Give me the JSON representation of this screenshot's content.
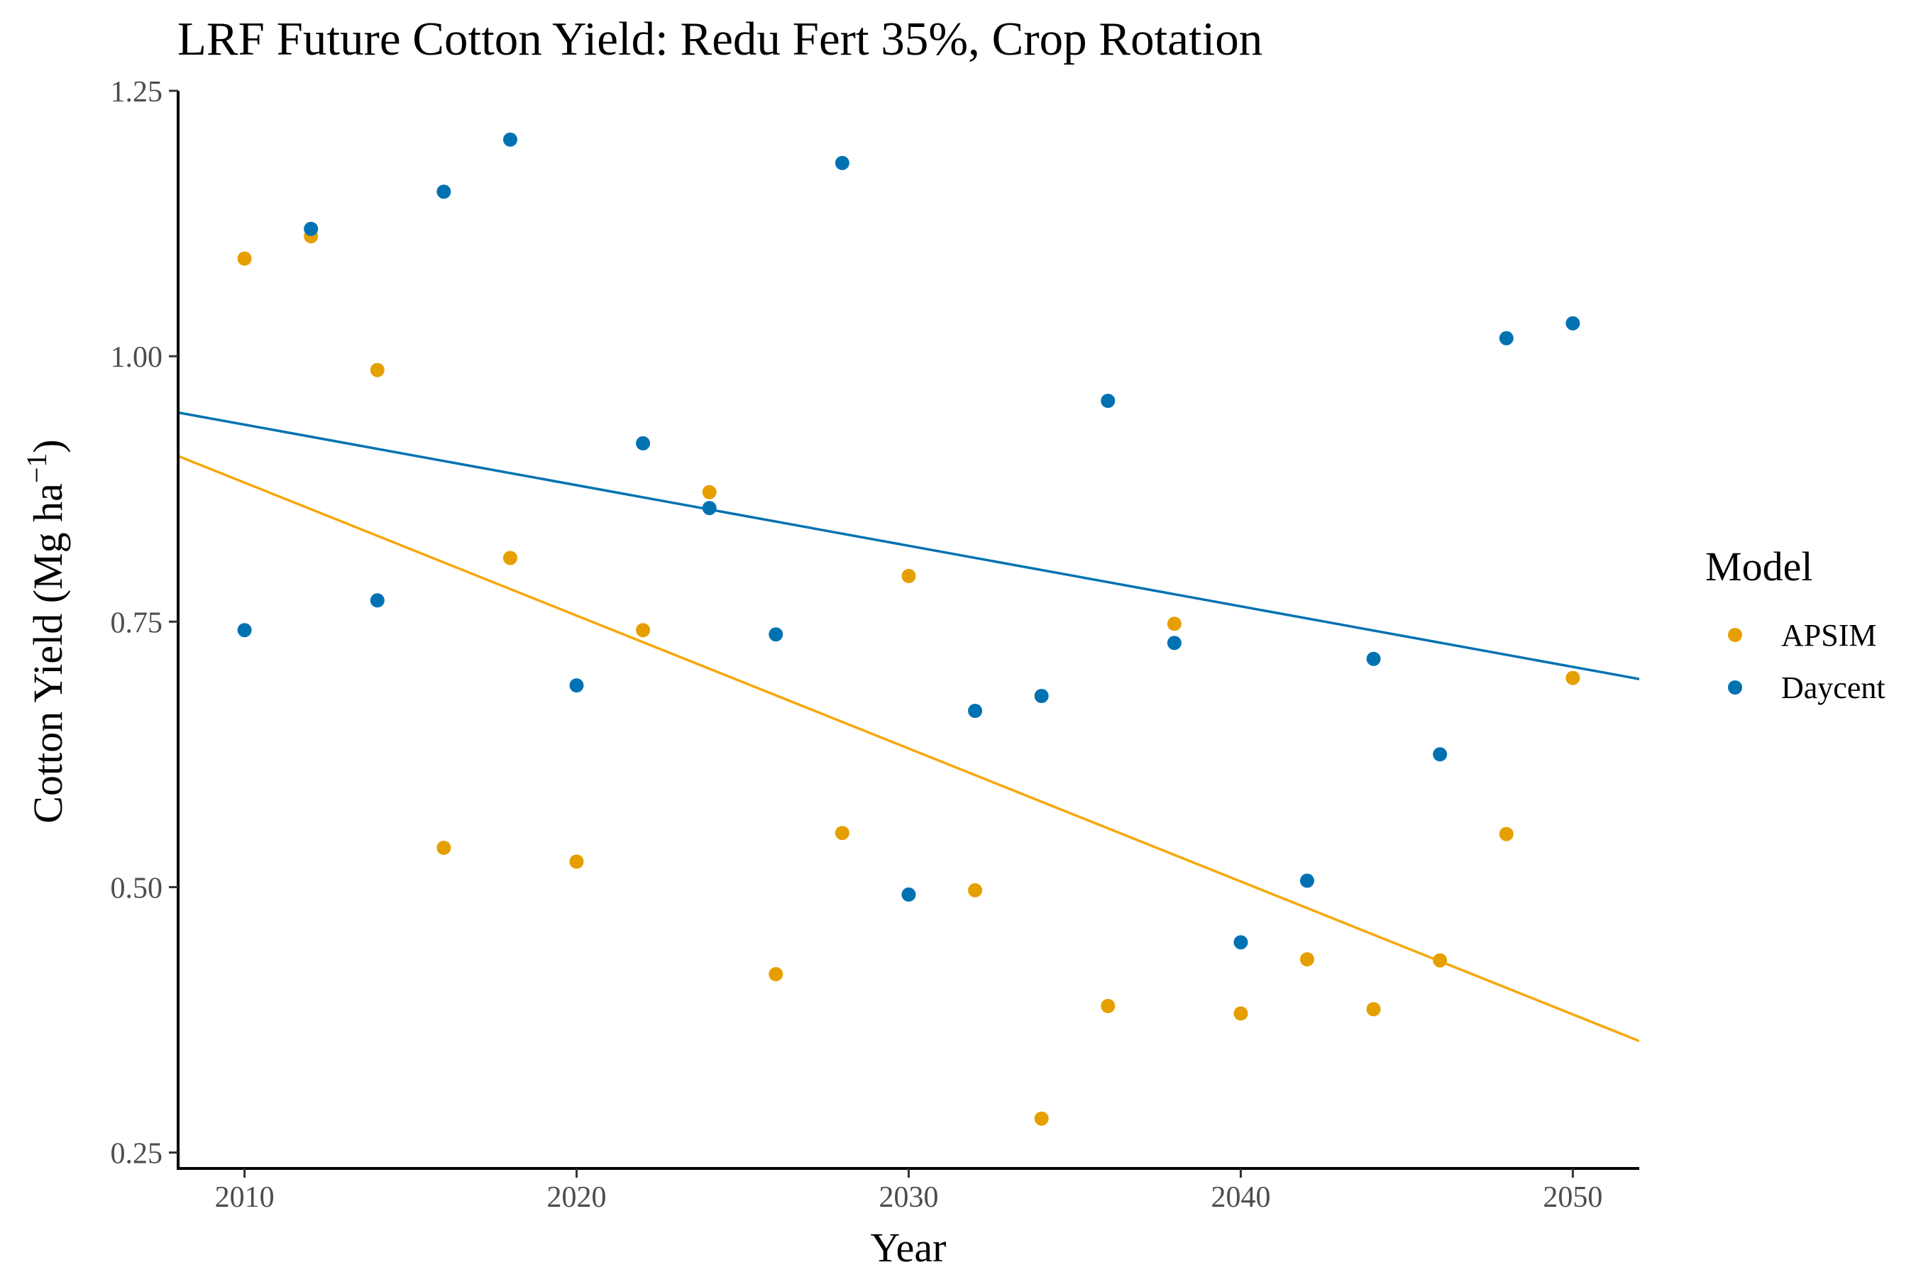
{
  "chart_data": {
    "type": "scatter",
    "title": "LRF Future Cotton Yield:  Redu Fert 35%, Crop Rotation",
    "xlabel": "Year",
    "ylabel": "Cotton Yield (Mg ha",
    "ylabel_superscript": "−1",
    "ylabel_close": ")",
    "xlim": [
      2008,
      2052
    ],
    "ylim": [
      0.235,
      1.25
    ],
    "x_ticks": [
      2010,
      2020,
      2030,
      2040,
      2050
    ],
    "x_tick_labels": [
      "2010",
      "2020",
      "2030",
      "2040",
      "2050"
    ],
    "y_ticks": [
      0.25,
      0.5,
      0.75,
      1.0,
      1.25
    ],
    "y_tick_labels": [
      "0.25",
      "0.50",
      "0.75",
      "1.00",
      "1.25"
    ],
    "grid": false,
    "legend": {
      "title": "Model",
      "placement": "right"
    },
    "series": [
      {
        "name": "APSIM",
        "color": "#E69F00",
        "line_color": "#F5A80D",
        "x": [
          2010,
          2012,
          2014,
          2016,
          2018,
          2020,
          2022,
          2024,
          2026,
          2028,
          2030,
          2032,
          2034,
          2036,
          2038,
          2040,
          2042,
          2044,
          2046,
          2048,
          2050
        ],
        "y": [
          1.092,
          1.113,
          0.987,
          0.537,
          0.81,
          0.524,
          0.742,
          0.872,
          0.418,
          0.551,
          0.793,
          0.497,
          0.282,
          0.388,
          0.748,
          0.381,
          0.432,
          0.385,
          0.431,
          0.55,
          0.697
        ],
        "trend": {
          "x": [
            2008,
            2052
          ],
          "y": [
            0.906,
            0.355
          ]
        }
      },
      {
        "name": "Daycent",
        "color": "#0072B2",
        "line_color": "#0072B2",
        "x": [
          2010,
          2012,
          2014,
          2016,
          2018,
          2020,
          2022,
          2024,
          2026,
          2028,
          2030,
          2032,
          2034,
          2036,
          2038,
          2040,
          2042,
          2044,
          2046,
          2048,
          2050
        ],
        "y": [
          0.742,
          1.12,
          0.77,
          1.155,
          1.204,
          0.69,
          0.918,
          0.857,
          0.738,
          1.182,
          0.493,
          0.666,
          0.68,
          0.958,
          0.73,
          0.448,
          0.506,
          0.715,
          0.625,
          1.017,
          1.031
        ],
        "trend": {
          "x": [
            2008,
            2052
          ],
          "y": [
            0.947,
            0.696
          ]
        }
      }
    ]
  }
}
